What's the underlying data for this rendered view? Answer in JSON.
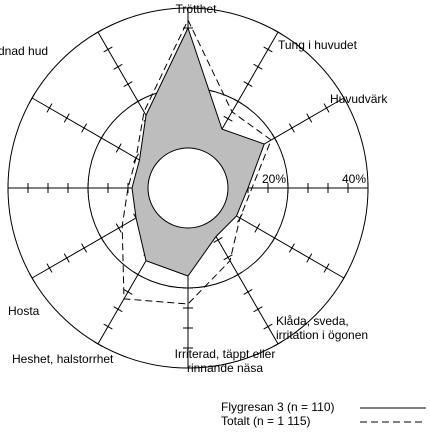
{
  "chart_data": {
    "type": "radar",
    "categories": [
      "Trötthet",
      "Tung i huvudet",
      "Huvudvärk",
      null,
      null,
      "Klåda, sveda,\nirritation i ögonen",
      "Irriterad, täppt eller\nrinnande näsa",
      "Heshet, halstorrhet",
      "Hosta",
      null,
      "dnad hud",
      null
    ],
    "series": [
      {
        "name": "Flygresan 3 (n = 110)",
        "color": "#000000",
        "fill": "#bdbdbd",
        "dash": false,
        "values": [
          35,
          12,
          17,
          10,
          9,
          9,
          17,
          16,
          10,
          9,
          9,
          16
        ]
      },
      {
        "name": "Totalt (n = 1 115)",
        "color": "#000000",
        "dash": true,
        "values": [
          37,
          17,
          19,
          11,
          10,
          16,
          24,
          27,
          14,
          10,
          10,
          17
        ]
      }
    ],
    "rlim": [
      0,
      40
    ],
    "rticks": [
      {
        "value": 20,
        "label": "20%"
      },
      {
        "value": 40,
        "label": "40%"
      }
    ],
    "minor_ticks": [
      5,
      10,
      15,
      20,
      25,
      30,
      35,
      40
    ],
    "legend": "lower right"
  }
}
